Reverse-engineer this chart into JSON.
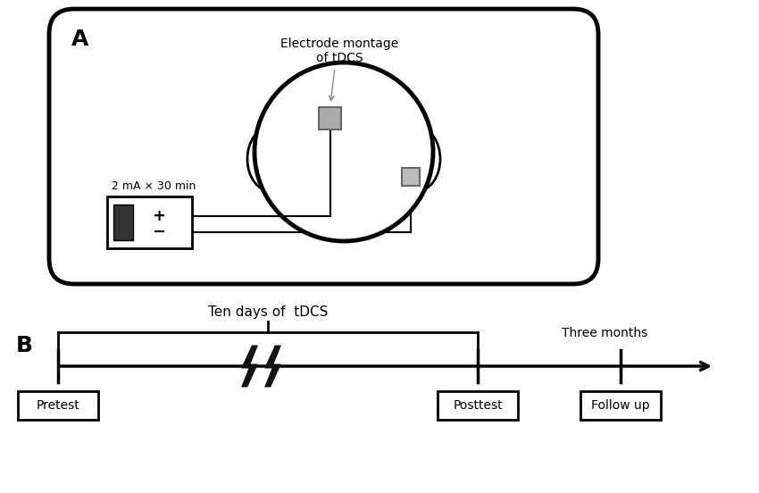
{
  "bg_color": "#ffffff",
  "panel_A_label": "A",
  "panel_B_label": "B",
  "electrode_text_line1": "Electrode montage",
  "electrode_text_line2": "of tDCS",
  "current_text": "2 mA × 30 min",
  "timeline_text": "Ten days of  tDCS",
  "three_months_text": "Three months",
  "pretest_label": "Pretest",
  "posttest_label": "Posttest",
  "followup_label": "Follow up"
}
